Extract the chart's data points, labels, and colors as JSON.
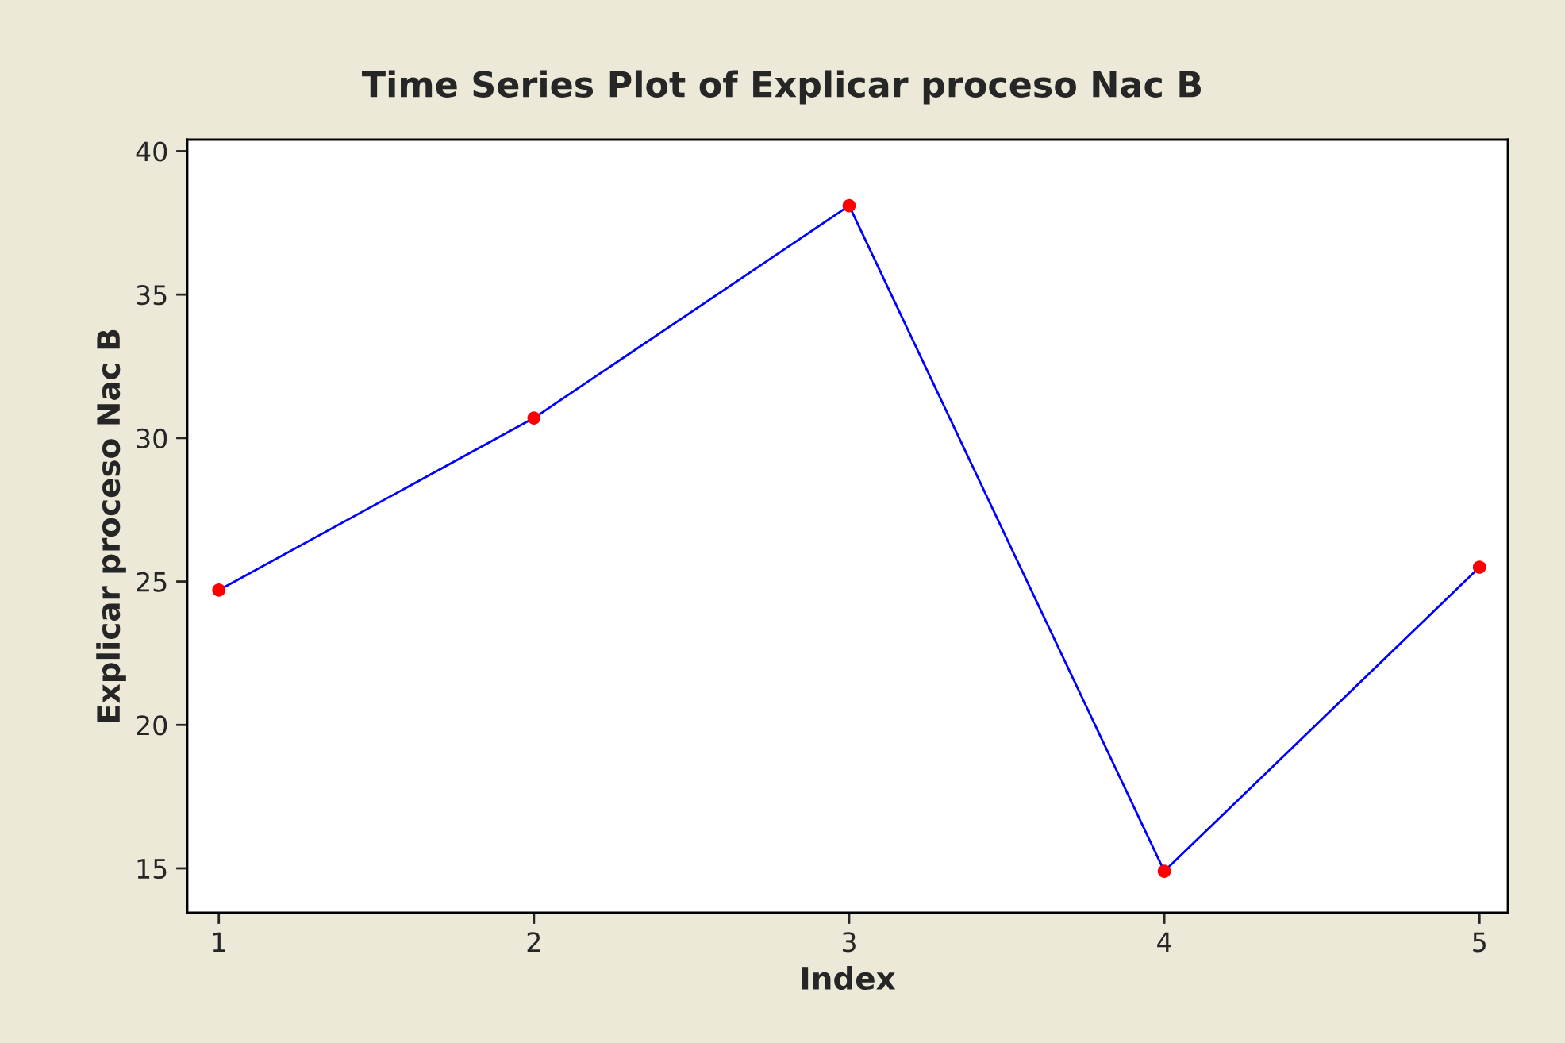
{
  "chart_data": {
    "type": "line",
    "title": "Time Series Plot of Explicar proceso Nac B",
    "xlabel": "Index",
    "ylabel": "Explicar proceso Nac B",
    "x": [
      1,
      2,
      3,
      4,
      5
    ],
    "series": [
      {
        "color": "#0000ff",
        "colors": [
          "#ff0000",
          "#ff0000",
          "#ff0000",
          "#ff0000",
          "#ff0000"
        ],
        "values": [
          24.7,
          30.7,
          38.1,
          14.9,
          25.5
        ]
      }
    ],
    "xlim": [
      0.9,
      5.09
    ],
    "ylim": [
      13.45,
      40.4
    ],
    "xticks": [
      1,
      2,
      3,
      4,
      5
    ],
    "yticks": [
      15,
      20,
      25,
      30,
      35,
      40
    ],
    "grid": false,
    "marker": "circle",
    "line_style": "solid"
  }
}
